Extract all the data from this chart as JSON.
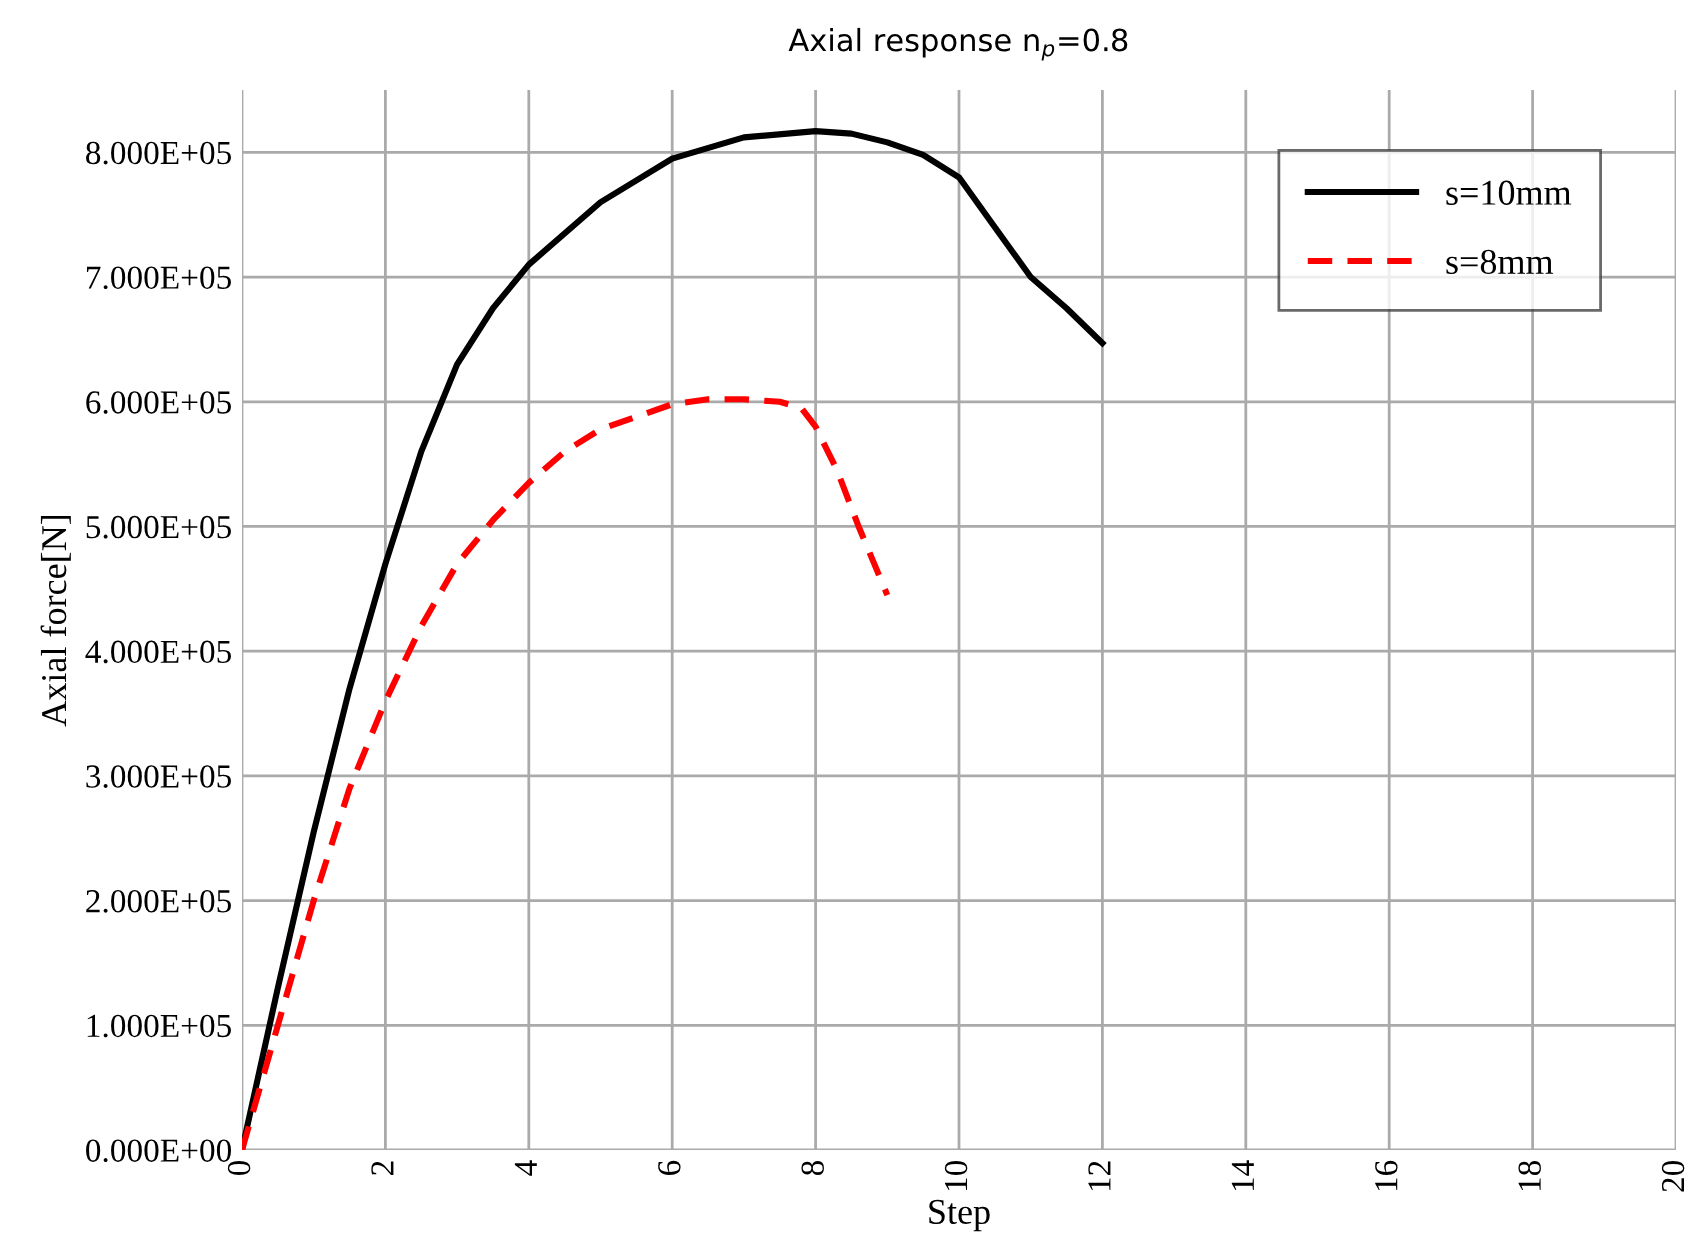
{
  "chart_data": {
    "type": "line",
    "title": "Axial response n$_{p}$=0.8",
    "xlabel": "Step",
    "ylabel": "Axial force[N]",
    "xlim": [
      0,
      20
    ],
    "xticks": [
      0,
      2,
      4,
      6,
      8,
      10,
      12,
      14,
      16,
      18,
      20
    ],
    "ylim": [
      0,
      850000
    ],
    "yticks": [
      {
        "value": 0,
        "label": "0.000E+00"
      },
      {
        "value": 100000,
        "label": "1.000E+05"
      },
      {
        "value": 200000,
        "label": "2.000E+05"
      },
      {
        "value": 300000,
        "label": "3.000E+05"
      },
      {
        "value": 400000,
        "label": "4.000E+05"
      },
      {
        "value": 500000,
        "label": "5.000E+05"
      },
      {
        "value": 600000,
        "label": "6.000E+05"
      },
      {
        "value": 700000,
        "label": "7.000E+05"
      },
      {
        "value": 800000,
        "label": "8.000E+05"
      }
    ],
    "grid": true,
    "legend": "top right",
    "series": [
      {
        "name": "s=10mm",
        "color": "#000000",
        "line_style": "solid",
        "x": [
          0,
          0.5,
          1,
          1.5,
          2,
          2.5,
          3,
          3.5,
          4,
          5,
          6,
          7,
          8,
          8.5,
          9,
          9.5,
          10,
          10.5,
          11,
          11.5,
          12
        ],
        "values": [
          0,
          130000,
          255000,
          370000,
          470000,
          560000,
          630000,
          675000,
          710000,
          760000,
          795000,
          812000,
          817000,
          815000,
          808000,
          798000,
          780000,
          740000,
          700000,
          675000,
          647000
        ]
      },
      {
        "name": "s=8mm",
        "color": "#ff0000",
        "line_style": "dashed",
        "x": [
          0,
          0.5,
          1,
          1.5,
          2,
          2.5,
          3,
          3.5,
          4,
          4.5,
          5,
          6,
          6.5,
          7,
          7.5,
          7.8,
          8,
          8.3,
          8.6,
          9
        ],
        "values": [
          0,
          100000,
          200000,
          290000,
          360000,
          420000,
          470000,
          505000,
          535000,
          560000,
          578000,
          598000,
          602000,
          602000,
          600000,
          595000,
          580000,
          545000,
          500000,
          445000
        ]
      }
    ]
  }
}
